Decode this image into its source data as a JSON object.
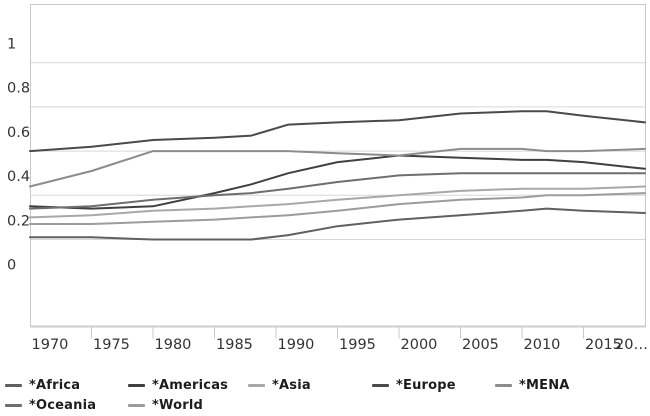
{
  "chart_data": {
    "type": "line",
    "title": "",
    "xlabel": "",
    "ylabel": "",
    "x": [
      1970,
      1975,
      1980,
      1985,
      1988,
      1991,
      1995,
      2000,
      2005,
      2010,
      2012,
      2015,
      2020
    ],
    "xlim": [
      1970,
      2020
    ],
    "ylim": [
      -0.2,
      1.26
    ],
    "grid": "horizontal-only",
    "y_gridline_values": [
      0.2,
      0.4,
      0.6,
      0.8,
      1.0
    ],
    "y_tick_labels": [
      "0",
      "0.2",
      "0.4",
      "0.6",
      "0.8",
      "1"
    ],
    "y_tick_values": [
      0,
      0.2,
      0.4,
      0.6,
      0.8,
      1
    ],
    "x_tick_labels": [
      "1970",
      "1975",
      "1980",
      "1985",
      "1990",
      "1995",
      "2000",
      "2005",
      "2010",
      "2015",
      "20…"
    ],
    "x_tick_years": [
      1970,
      1975,
      1980,
      1985,
      1990,
      1995,
      2000,
      2005,
      2010,
      2015,
      2020
    ],
    "legend_position": "bottom",
    "axis_text_color": "#333333",
    "gridline_color": "#d7d7d7",
    "border_color": "#c9c9c9",
    "series": [
      {
        "name": "*Africa",
        "color": "#606060",
        "values": [
          0.21,
          0.21,
          0.2,
          0.2,
          0.2,
          0.22,
          0.26,
          0.29,
          0.31,
          0.33,
          0.34,
          0.33,
          0.32
        ]
      },
      {
        "name": "*Americas",
        "color": "#404040",
        "values": [
          0.35,
          0.34,
          0.35,
          0.41,
          0.45,
          0.5,
          0.55,
          0.58,
          0.57,
          0.56,
          0.56,
          0.55,
          0.52
        ]
      },
      {
        "name": "*Asia",
        "color": "#a8a8a8",
        "values": [
          0.3,
          0.31,
          0.33,
          0.34,
          0.35,
          0.36,
          0.38,
          0.4,
          0.42,
          0.43,
          0.43,
          0.43,
          0.44
        ]
      },
      {
        "name": "*Europe",
        "color": "#4a4a4a",
        "values": [
          0.6,
          0.62,
          0.65,
          0.66,
          0.67,
          0.72,
          0.73,
          0.74,
          0.77,
          0.78,
          0.78,
          0.76,
          0.73
        ]
      },
      {
        "name": "*MENA",
        "color": "#8c8c8c",
        "values": [
          0.44,
          0.51,
          0.6,
          0.6,
          0.6,
          0.6,
          0.59,
          0.58,
          0.61,
          0.61,
          0.6,
          0.6,
          0.61
        ]
      },
      {
        "name": "*Oceania",
        "color": "#6e6e6e",
        "values": [
          0.34,
          0.35,
          0.38,
          0.4,
          0.41,
          0.43,
          0.46,
          0.49,
          0.5,
          0.5,
          0.5,
          0.5,
          0.5
        ]
      },
      {
        "name": "*World",
        "color": "#9c9c9c",
        "values": [
          0.27,
          0.27,
          0.28,
          0.29,
          0.3,
          0.31,
          0.33,
          0.36,
          0.38,
          0.39,
          0.4,
          0.4,
          0.41
        ]
      }
    ]
  }
}
